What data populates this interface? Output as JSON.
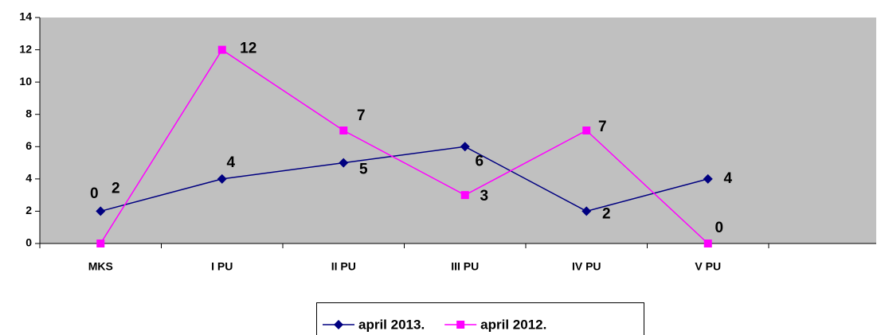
{
  "chart_data": {
    "type": "line",
    "categories": [
      "MKS",
      "I PU",
      "II PU",
      "III PU",
      "IV PU",
      "V PU"
    ],
    "series": [
      {
        "name": "april 2013.",
        "color": "#000080",
        "marker": "diamond",
        "values": [
          2,
          4,
          5,
          6,
          2,
          4
        ]
      },
      {
        "name": "april 2012.",
        "color": "#ff00ff",
        "marker": "square",
        "values": [
          0,
          12,
          7,
          3,
          7,
          0
        ]
      }
    ],
    "ylim": [
      0,
      14
    ],
    "yticks": [
      0,
      2,
      4,
      6,
      8,
      10,
      12,
      14
    ],
    "plot_background": "#c0c0c0",
    "legend": "bottom"
  }
}
